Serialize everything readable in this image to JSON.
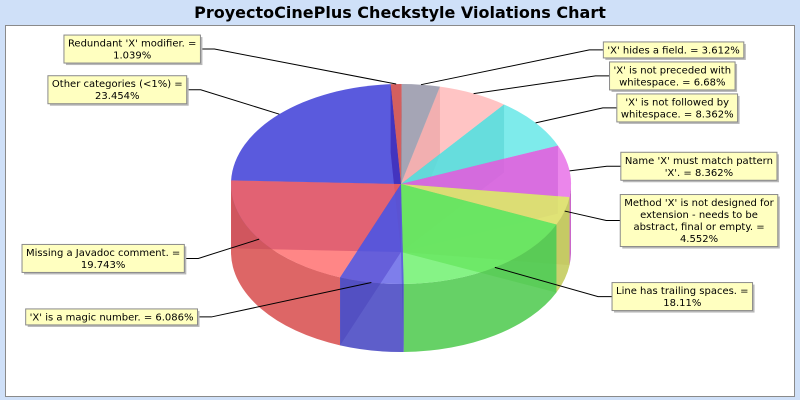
{
  "title": "ProyectoCinePlus Checkstyle Violations Chart",
  "chart_data": {
    "type": "pie",
    "title": "ProyectoCinePlus Checkstyle Violations Chart",
    "slices": [
      {
        "label": "Missing a Javadoc comment. = 19.743%",
        "value": 19.743,
        "color": "#ff6464"
      },
      {
        "label": "Other categories (<1%) = 23.454%",
        "value": 23.454,
        "color": "#2c2cd4"
      },
      {
        "label": "Redundant 'X' modifier. = 1.039%",
        "value": 1.039,
        "color": "#c83232"
      },
      {
        "label": "'X' hides a field. = 3.612%",
        "value": 3.612,
        "color": "#8c8ca0"
      },
      {
        "label": "'X' is not preceded with whitespace. = 6.68%",
        "value": 6.68,
        "color": "#ffb4b4"
      },
      {
        "label": "'X' is not followed by whitespace. = 8.362%",
        "value": 8.362,
        "color": "#5ae6e6"
      },
      {
        "label": "Name 'X' must match pattern 'X'. = 8.362%",
        "value": 8.362,
        "color": "#e664e6"
      },
      {
        "label": "Method 'X' is not designed for extension - needs to be abstract, final or empty. = 4.552%",
        "value": 4.552,
        "color": "#e6f06e"
      },
      {
        "label": "Line has trailing spaces. = 18.11%",
        "value": 18.11,
        "color": "#64f064"
      },
      {
        "label": "'X' is a magic number. = 6.086%",
        "value": 6.086,
        "color": "#5a5ae6"
      }
    ]
  }
}
